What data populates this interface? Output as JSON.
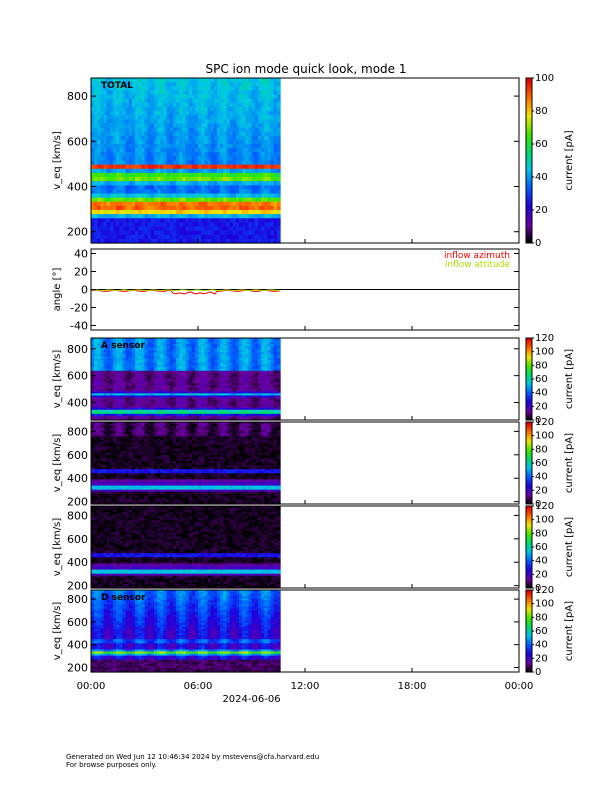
{
  "title": "SPC ion mode quick look, mode 1",
  "footer": {
    "line1": "Generated on Wed Jun 12 10:46:34 2024 by mstevens@cfa.harvard.edu",
    "line2": "For browse purposes only."
  },
  "chart_data": [
    {
      "type": "heatmap",
      "label": "TOTAL",
      "ylabel": "v_eq [km/s]",
      "yticks": [
        "200",
        "400",
        "600",
        "800"
      ],
      "ylim": [
        150,
        880
      ],
      "colorbar": {
        "label": "current [pA]",
        "ticks": [
          "0",
          "20",
          "40",
          "60",
          "80",
          "100"
        ],
        "range": [
          0,
          100
        ]
      },
      "x_data_end": "10:36"
    },
    {
      "type": "line",
      "ylabel": "angle [°]",
      "yticks": [
        "-40",
        "-20",
        "0",
        "20",
        "40"
      ],
      "ylim": [
        -45,
        45
      ],
      "series": [
        {
          "name": "inflow azimuth",
          "color": "#ff0000"
        },
        {
          "name": "inflow attitude",
          "color": "#b0e000"
        }
      ],
      "x_data_end": "10:36"
    },
    {
      "type": "heatmap",
      "label": "A sensor",
      "ylabel": "v_eq [km/s]",
      "yticks": [
        "400",
        "600",
        "800"
      ],
      "ylim": [
        270,
        880
      ],
      "colorbar": {
        "label": "current [pA]",
        "ticks": [
          "0",
          "20",
          "40",
          "60",
          "80",
          "100",
          "120"
        ],
        "range": [
          0,
          120
        ]
      }
    },
    {
      "type": "heatmap",
      "label": "",
      "ylabel": "v_eq [km/s]",
      "yticks": [
        "200",
        "400",
        "600",
        "800"
      ],
      "ylim": [
        180,
        880
      ],
      "colorbar": {
        "label": "current [pA]",
        "ticks": [
          "0",
          "20",
          "40",
          "60",
          "80",
          "100",
          "120"
        ],
        "range": [
          0,
          120
        ]
      }
    },
    {
      "type": "heatmap",
      "label": "",
      "ylabel": "v_eq [km/s]",
      "yticks": [
        "200",
        "400",
        "600",
        "800"
      ],
      "ylim": [
        180,
        880
      ],
      "colorbar": {
        "label": "current [pA]",
        "ticks": [
          "0",
          "20",
          "40",
          "60",
          "80",
          "100",
          "120"
        ],
        "range": [
          0,
          120
        ]
      }
    },
    {
      "type": "heatmap",
      "label": "D sensor",
      "ylabel": "v_eq [km/s]",
      "yticks": [
        "200",
        "400",
        "600",
        "800"
      ],
      "ylim": [
        160,
        880
      ],
      "colorbar": {
        "label": "current [pA]",
        "ticks": [
          "0",
          "20",
          "40",
          "60",
          "80",
          "100",
          "120"
        ],
        "range": [
          0,
          120
        ]
      }
    }
  ],
  "xaxis": {
    "ticks": [
      "00:00",
      "06:00",
      "12:00",
      "18:00",
      "00:00"
    ],
    "date_label": "2024-06-06",
    "data_end": "10:36"
  }
}
